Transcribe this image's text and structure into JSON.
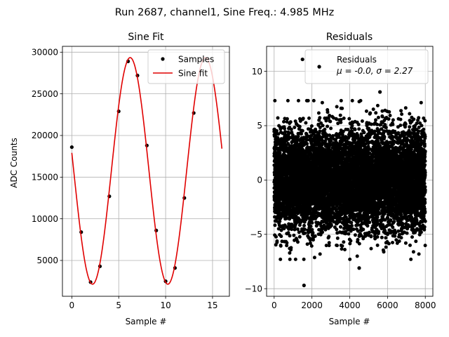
{
  "suptitle": "Run 2687, channel1, Sine Freq.: 4.985 MHz",
  "chart_data": [
    {
      "type": "line",
      "title": "Sine Fit",
      "xlabel": "Sample #",
      "ylabel": "ADC Counts",
      "xlim": [
        -1,
        16.8
      ],
      "ylim": [
        700,
        30700
      ],
      "xticks": [
        0,
        5,
        10,
        15
      ],
      "yticks": [
        5000,
        10000,
        15000,
        20000,
        25000,
        30000
      ],
      "grid": true,
      "legend": {
        "placement": "top-right",
        "entries": [
          "Samples",
          "Sine fit"
        ]
      },
      "series": [
        {
          "name": "Samples",
          "style": "points",
          "color": "#000000",
          "x": [
            0,
            1,
            2,
            3,
            4,
            5,
            6,
            7,
            8,
            9,
            10,
            11,
            12,
            13,
            14
          ],
          "y": [
            18600,
            8400,
            2400,
            4300,
            12700,
            22900,
            28900,
            27200,
            18800,
            8600,
            2500,
            4100,
            12500,
            22700,
            29000
          ]
        },
        {
          "name": "Sine fit",
          "style": "line",
          "color": "#e00000",
          "function": {
            "kind": "sine",
            "amplitude": 13600,
            "offset": 15750,
            "period": 8.024,
            "phase_sample": 2.21,
            "x_start": 0,
            "x_end": 16
          }
        }
      ]
    },
    {
      "type": "scatter",
      "title": "Residuals",
      "xlabel": "Sample #",
      "ylabel": "",
      "xlim": [
        -400,
        8400
      ],
      "ylim": [
        -10.7,
        12.3
      ],
      "xticks": [
        0,
        2000,
        4000,
        6000,
        8000
      ],
      "yticks": [
        -10,
        -5,
        0,
        5,
        10
      ],
      "grid": true,
      "legend": {
        "placement": "top-right",
        "entries": [
          "Residuals",
          "μ = -0.0, σ = 2.27"
        ]
      },
      "series": [
        {
          "name": "Residuals",
          "color": "#000000",
          "count": 8000,
          "mean": 0.0,
          "std": 2.27,
          "highlights": [
            {
              "x": 1500,
              "y": 11.1
            },
            {
              "x": 2400,
              "y": 10.4
            },
            {
              "x": 1580,
              "y": -9.7
            },
            {
              "x": 4500,
              "y": -8.1
            },
            {
              "x": 5600,
              "y": 8.1
            }
          ]
        }
      ]
    }
  ]
}
